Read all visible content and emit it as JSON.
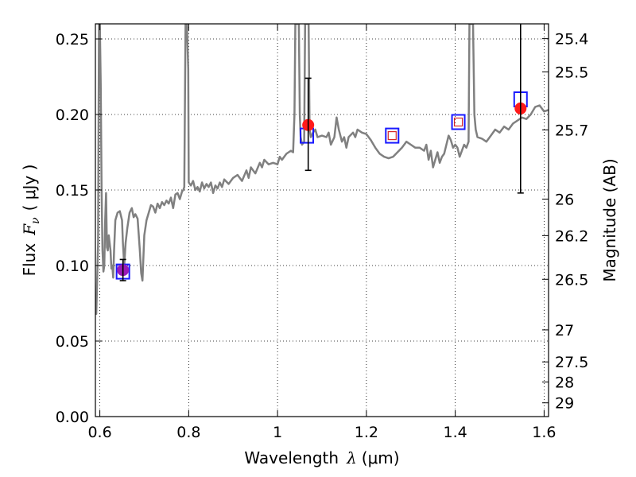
{
  "chart_data": {
    "type": "line",
    "xlabel": {
      "text": "Wavelength",
      "symbol": "λ",
      "unit": "(μm)"
    },
    "ylabel": {
      "text": "Flux",
      "symbol": "F",
      "subscript": "ν",
      "unit": "( μJy )"
    },
    "ylabel_right": "Magnitude (AB)",
    "xlim": [
      0.59,
      1.61
    ],
    "ylim": [
      0.0,
      0.26
    ],
    "grid": true,
    "x_ticks": [
      0.6,
      0.8,
      1.0,
      1.2,
      1.4,
      1.6
    ],
    "x_tick_labels": [
      "0.6",
      "0.8",
      "1",
      "1.2",
      "1.4",
      "1.6"
    ],
    "y_ticks": [
      0.0,
      0.05,
      0.1,
      0.15,
      0.2,
      0.25
    ],
    "y_tick_labels": [
      "0.00",
      "0.05",
      "0.10",
      "0.15",
      "0.20",
      "0.25"
    ],
    "right_ticks": [
      {
        "label": "25.4",
        "flux": 0.2502
      },
      {
        "label": "25.5",
        "flux": 0.2282
      },
      {
        "label": "25.7",
        "flux": 0.1898
      },
      {
        "label": "26",
        "flux": 0.144
      },
      {
        "label": "26.2",
        "flux": 0.1198
      },
      {
        "label": "26.5",
        "flux": 0.0909
      },
      {
        "label": "27",
        "flux": 0.0574
      },
      {
        "label": "27.5",
        "flux": 0.0362
      },
      {
        "label": "28",
        "flux": 0.0229
      },
      {
        "label": "29",
        "flux": 0.0091
      }
    ],
    "series": [
      {
        "style": "line",
        "color": "#808080",
        "points": [
          [
            0.59,
            0.07
          ],
          [
            0.592,
            0.068
          ],
          [
            0.594,
            0.09
          ],
          [
            0.596,
            0.115
          ],
          [
            0.598,
            0.26
          ],
          [
            0.6,
            0.26
          ],
          [
            0.602,
            0.22
          ],
          [
            0.604,
            0.15
          ],
          [
            0.606,
            0.11
          ],
          [
            0.608,
            0.096
          ],
          [
            0.61,
            0.1
          ],
          [
            0.612,
            0.13
          ],
          [
            0.614,
            0.148
          ],
          [
            0.616,
            0.112
          ],
          [
            0.618,
            0.11
          ],
          [
            0.62,
            0.12
          ],
          [
            0.622,
            0.115
          ],
          [
            0.624,
            0.11
          ],
          [
            0.626,
            0.098
          ],
          [
            0.628,
            0.1
          ],
          [
            0.63,
            0.092
          ],
          [
            0.632,
            0.11
          ],
          [
            0.635,
            0.13
          ],
          [
            0.64,
            0.135
          ],
          [
            0.645,
            0.136
          ],
          [
            0.65,
            0.13
          ],
          [
            0.652,
            0.115
          ],
          [
            0.655,
            0.1
          ],
          [
            0.658,
            0.115
          ],
          [
            0.662,
            0.125
          ],
          [
            0.667,
            0.135
          ],
          [
            0.672,
            0.138
          ],
          [
            0.676,
            0.132
          ],
          [
            0.68,
            0.134
          ],
          [
            0.685,
            0.131
          ],
          [
            0.69,
            0.11
          ],
          [
            0.693,
            0.095
          ],
          [
            0.696,
            0.09
          ],
          [
            0.7,
            0.12
          ],
          [
            0.705,
            0.13
          ],
          [
            0.71,
            0.135
          ],
          [
            0.715,
            0.14
          ],
          [
            0.72,
            0.139
          ],
          [
            0.725,
            0.135
          ],
          [
            0.73,
            0.141
          ],
          [
            0.735,
            0.138
          ],
          [
            0.74,
            0.142
          ],
          [
            0.745,
            0.14
          ],
          [
            0.75,
            0.143
          ],
          [
            0.755,
            0.141
          ],
          [
            0.76,
            0.145
          ],
          [
            0.765,
            0.138
          ],
          [
            0.77,
            0.147
          ],
          [
            0.775,
            0.148
          ],
          [
            0.78,
            0.144
          ],
          [
            0.785,
            0.149
          ],
          [
            0.788,
            0.15
          ],
          [
            0.79,
            0.152
          ],
          [
            0.793,
            0.26
          ],
          [
            0.796,
            0.26
          ],
          [
            0.799,
            0.23
          ],
          [
            0.8,
            0.155
          ],
          [
            0.805,
            0.153
          ],
          [
            0.81,
            0.156
          ],
          [
            0.815,
            0.15
          ],
          [
            0.82,
            0.152
          ],
          [
            0.825,
            0.149
          ],
          [
            0.83,
            0.155
          ],
          [
            0.835,
            0.151
          ],
          [
            0.84,
            0.154
          ],
          [
            0.845,
            0.152
          ],
          [
            0.85,
            0.155
          ],
          [
            0.855,
            0.148
          ],
          [
            0.86,
            0.153
          ],
          [
            0.865,
            0.151
          ],
          [
            0.87,
            0.155
          ],
          [
            0.875,
            0.152
          ],
          [
            0.88,
            0.157
          ],
          [
            0.89,
            0.154
          ],
          [
            0.9,
            0.158
          ],
          [
            0.91,
            0.16
          ],
          [
            0.92,
            0.156
          ],
          [
            0.93,
            0.163
          ],
          [
            0.935,
            0.158
          ],
          [
            0.94,
            0.165
          ],
          [
            0.95,
            0.161
          ],
          [
            0.96,
            0.168
          ],
          [
            0.965,
            0.165
          ],
          [
            0.97,
            0.17
          ],
          [
            0.98,
            0.167
          ],
          [
            0.99,
            0.168
          ],
          [
            1.0,
            0.167
          ],
          [
            1.005,
            0.172
          ],
          [
            1.01,
            0.17
          ],
          [
            1.02,
            0.174
          ],
          [
            1.03,
            0.176
          ],
          [
            1.035,
            0.175
          ],
          [
            1.038,
            0.2
          ],
          [
            1.04,
            0.26
          ],
          [
            1.048,
            0.26
          ],
          [
            1.05,
            0.2
          ],
          [
            1.052,
            0.185
          ],
          [
            1.055,
            0.18
          ],
          [
            1.06,
            0.182
          ],
          [
            1.062,
            0.26
          ],
          [
            1.07,
            0.26
          ],
          [
            1.072,
            0.19
          ],
          [
            1.075,
            0.185
          ],
          [
            1.08,
            0.188
          ],
          [
            1.085,
            0.19
          ],
          [
            1.09,
            0.185
          ],
          [
            1.1,
            0.186
          ],
          [
            1.11,
            0.185
          ],
          [
            1.115,
            0.188
          ],
          [
            1.12,
            0.18
          ],
          [
            1.128,
            0.185
          ],
          [
            1.133,
            0.198
          ],
          [
            1.138,
            0.19
          ],
          [
            1.145,
            0.182
          ],
          [
            1.15,
            0.185
          ],
          [
            1.155,
            0.178
          ],
          [
            1.16,
            0.185
          ],
          [
            1.17,
            0.188
          ],
          [
            1.175,
            0.185
          ],
          [
            1.18,
            0.19
          ],
          [
            1.19,
            0.188
          ],
          [
            1.2,
            0.187
          ],
          [
            1.21,
            0.183
          ],
          [
            1.22,
            0.178
          ],
          [
            1.23,
            0.174
          ],
          [
            1.24,
            0.172
          ],
          [
            1.25,
            0.171
          ],
          [
            1.26,
            0.172
          ],
          [
            1.27,
            0.175
          ],
          [
            1.28,
            0.178
          ],
          [
            1.29,
            0.182
          ],
          [
            1.3,
            0.18
          ],
          [
            1.31,
            0.178
          ],
          [
            1.32,
            0.178
          ],
          [
            1.33,
            0.176
          ],
          [
            1.335,
            0.18
          ],
          [
            1.34,
            0.17
          ],
          [
            1.345,
            0.176
          ],
          [
            1.35,
            0.165
          ],
          [
            1.355,
            0.17
          ],
          [
            1.36,
            0.175
          ],
          [
            1.365,
            0.168
          ],
          [
            1.37,
            0.172
          ],
          [
            1.375,
            0.174
          ],
          [
            1.38,
            0.18
          ],
          [
            1.385,
            0.186
          ],
          [
            1.39,
            0.183
          ],
          [
            1.395,
            0.178
          ],
          [
            1.4,
            0.18
          ],
          [
            1.405,
            0.178
          ],
          [
            1.41,
            0.172
          ],
          [
            1.415,
            0.176
          ],
          [
            1.42,
            0.18
          ],
          [
            1.425,
            0.178
          ],
          [
            1.43,
            0.182
          ],
          [
            1.432,
            0.26
          ],
          [
            1.44,
            0.26
          ],
          [
            1.443,
            0.2
          ],
          [
            1.446,
            0.19
          ],
          [
            1.45,
            0.185
          ],
          [
            1.46,
            0.184
          ],
          [
            1.47,
            0.182
          ],
          [
            1.48,
            0.186
          ],
          [
            1.49,
            0.19
          ],
          [
            1.5,
            0.188
          ],
          [
            1.51,
            0.192
          ],
          [
            1.52,
            0.19
          ],
          [
            1.53,
            0.194
          ],
          [
            1.54,
            0.196
          ],
          [
            1.55,
            0.198
          ],
          [
            1.56,
            0.197
          ],
          [
            1.57,
            0.2
          ],
          [
            1.58,
            0.205
          ],
          [
            1.59,
            0.206
          ],
          [
            1.6,
            0.202
          ],
          [
            1.61,
            0.203
          ]
        ]
      },
      {
        "style": "open-square",
        "color": "#1a1aff",
        "points": [
          [
            0.652,
            0.096
          ],
          [
            1.066,
            0.186
          ],
          [
            1.258,
            0.186
          ],
          [
            1.407,
            0.195
          ],
          [
            1.547,
            0.21
          ]
        ]
      },
      {
        "style": "small-open-square",
        "color": "#d62728",
        "points": [
          [
            1.258,
            0.186
          ],
          [
            1.407,
            0.195
          ]
        ]
      },
      {
        "style": "filled-circle",
        "color": "#ff1a1a",
        "points": [
          [
            1.069,
            0.193
          ],
          [
            1.547,
            0.204
          ]
        ]
      },
      {
        "style": "filled-circle",
        "color": "#9a1ab8",
        "points": [
          [
            0.652,
            0.097
          ]
        ]
      },
      {
        "style": "errorbar",
        "color": "#000000",
        "bars": [
          [
            0.652,
            0.09,
            0.104
          ],
          [
            1.069,
            0.163,
            0.224
          ],
          [
            1.547,
            0.148,
            0.26
          ]
        ]
      }
    ]
  }
}
